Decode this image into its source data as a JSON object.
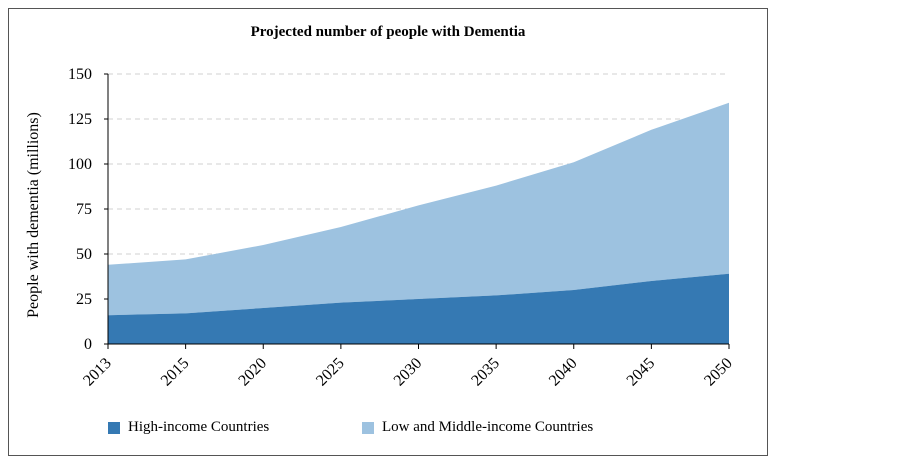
{
  "chart_data": {
    "type": "area",
    "title": "Projected number of people with Dementia",
    "xlabel": "",
    "ylabel": "People with dementia (millions)",
    "categories": [
      "2013",
      "2015",
      "2020",
      "2025",
      "2030",
      "2035",
      "2040",
      "2045",
      "2050"
    ],
    "ylim": [
      0,
      150
    ],
    "yticks": [
      "0",
      "25",
      "50",
      "75",
      "100",
      "125",
      "150"
    ],
    "stacked": true,
    "series": [
      {
        "name": "High-income Countries",
        "color": "#3579b3",
        "values": [
          16,
          17,
          20,
          23,
          25,
          27,
          30,
          35,
          39
        ]
      },
      {
        "name": "Low and Middle-income Countries",
        "color": "#9dc2e0",
        "values": [
          28,
          30,
          35,
          42,
          52,
          61,
          71,
          84,
          95
        ]
      }
    ]
  }
}
